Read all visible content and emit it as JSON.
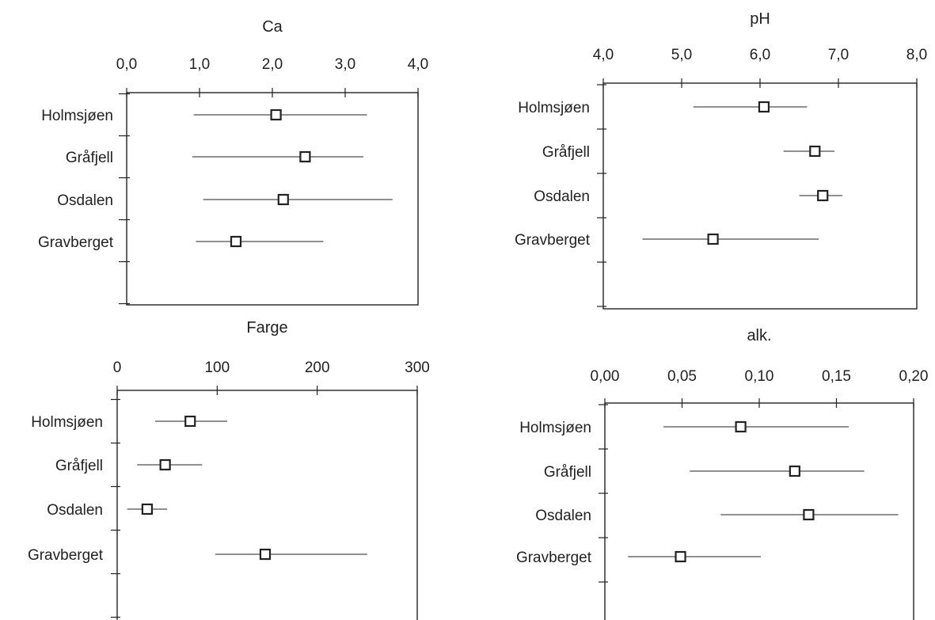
{
  "chart_data": [
    {
      "type": "range-dot",
      "title": "Ca",
      "xlim": [
        0,
        4
      ],
      "ticks": [
        "0,0",
        "1,0",
        "2,0",
        "3,0",
        "4,0"
      ],
      "tick_values": [
        0,
        1,
        2,
        3,
        4
      ],
      "categories": [
        "Holmsjøen",
        "Gråfjell",
        "Osdalen",
        "Gravberget"
      ],
      "mean": [
        2.05,
        2.45,
        2.15,
        1.5
      ],
      "min": [
        0.92,
        0.9,
        1.05,
        0.95
      ],
      "max": [
        3.3,
        3.25,
        3.65,
        2.7
      ]
    },
    {
      "type": "range-dot",
      "title": "pH",
      "xlim": [
        4,
        8
      ],
      "ticks": [
        "4,0",
        "5,0",
        "6,0",
        "7,0",
        "8,0"
      ],
      "tick_values": [
        4,
        5,
        6,
        7,
        8
      ],
      "categories": [
        "Holmsjøen",
        "Gråfjell",
        "Osdalen",
        "Gravberget"
      ],
      "mean": [
        6.05,
        6.7,
        6.8,
        5.4
      ],
      "min": [
        5.15,
        6.3,
        6.5,
        4.5
      ],
      "max": [
        6.6,
        6.95,
        7.05,
        6.75
      ]
    },
    {
      "type": "range-dot",
      "title": "Farge",
      "xlim": [
        0,
        300
      ],
      "ticks": [
        "0",
        "100",
        "200",
        "300"
      ],
      "tick_values": [
        0,
        100,
        200,
        300
      ],
      "categories": [
        "Holmsjøen",
        "Gråfjell",
        "Osdalen",
        "Gravberget"
      ],
      "mean": [
        73,
        48,
        30,
        148
      ],
      "min": [
        38,
        20,
        10,
        98
      ],
      "max": [
        110,
        85,
        50,
        250
      ]
    },
    {
      "type": "range-dot",
      "title": "alk.",
      "xlim": [
        0,
        0.2
      ],
      "ticks": [
        "0,00",
        "0,05",
        "0,10",
        "0,15",
        "0,20"
      ],
      "tick_values": [
        0,
        0.05,
        0.1,
        0.15,
        0.2
      ],
      "categories": [
        "Holmsjøen",
        "Gråfjell",
        "Osdalen",
        "Gravberget"
      ],
      "mean": [
        0.088,
        0.123,
        0.132,
        0.049
      ],
      "min": [
        0.038,
        0.055,
        0.075,
        0.015
      ],
      "max": [
        0.158,
        0.168,
        0.19,
        0.101
      ]
    }
  ]
}
